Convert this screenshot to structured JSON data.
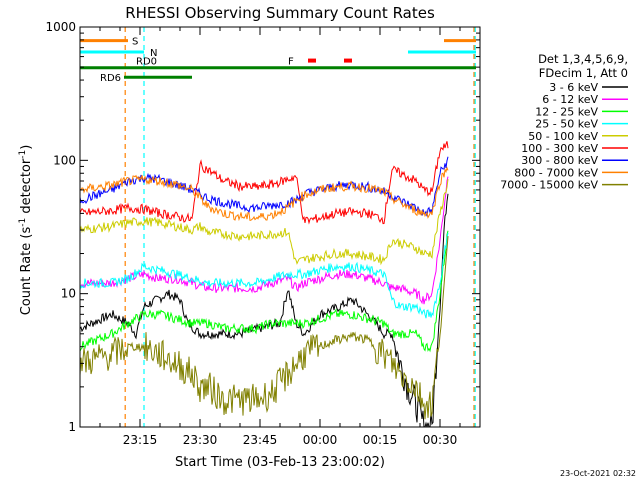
{
  "chart_data": {
    "type": "line",
    "title": "RHESSI Observing Summary Count Rates",
    "xlabel": "Start Time (03-Feb-13 23:00:02)",
    "ylabel_main": "Count Rate (s",
    "ylabel_sup": "-1",
    "ylabel_rest": " detector",
    "ylabel_sup2": "-1",
    "ylabel_end": ")",
    "x_unit": "minutes since 23:00:02",
    "xlim": [
      0,
      100
    ],
    "ylim": [
      1,
      1000
    ],
    "yscale": "log",
    "x_ticks": [
      {
        "t": 15,
        "label": "23:15"
      },
      {
        "t": 30,
        "label": "23:30"
      },
      {
        "t": 45,
        "label": "23:45"
      },
      {
        "t": 60,
        "label": "00:00"
      },
      {
        "t": 75,
        "label": "00:15"
      },
      {
        "t": 90,
        "label": "00:30"
      }
    ],
    "y_ticks": [
      {
        "v": 1,
        "label": "1"
      },
      {
        "v": 10,
        "label": "10"
      },
      {
        "v": 100,
        "label": "100"
      },
      {
        "v": 1000,
        "label": "1000"
      }
    ],
    "legend_header": [
      "Det 1,3,4,5,6,9,",
      "FDecim 1, Att 0"
    ],
    "series": [
      {
        "name": "3 - 6 keV",
        "color": "#000000",
        "points": [
          [
            0,
            5.5
          ],
          [
            8,
            7
          ],
          [
            12,
            6
          ],
          [
            14,
            5
          ],
          [
            16,
            8
          ],
          [
            22,
            10
          ],
          [
            25,
            9
          ],
          [
            27,
            6
          ],
          [
            30,
            5
          ],
          [
            35,
            5
          ],
          [
            40,
            5
          ],
          [
            45,
            5.5
          ],
          [
            50,
            6
          ],
          [
            52,
            11
          ],
          [
            54,
            6
          ],
          [
            56,
            5
          ],
          [
            60,
            7
          ],
          [
            65,
            8
          ],
          [
            68,
            9
          ],
          [
            70,
            8
          ],
          [
            74,
            6
          ],
          [
            76,
            5
          ],
          [
            78,
            5
          ],
          [
            80,
            3
          ],
          [
            82,
            2
          ],
          [
            84,
            1.5
          ],
          [
            86,
            1
          ],
          [
            88,
            1
          ],
          [
            89,
            3
          ],
          [
            90,
            8
          ],
          [
            91,
            30
          ],
          [
            92,
            60
          ]
        ]
      },
      {
        "name": "6 - 12 keV",
        "color": "#ff00ff",
        "points": [
          [
            0,
            12
          ],
          [
            8,
            12
          ],
          [
            12,
            13
          ],
          [
            16,
            14
          ],
          [
            20,
            13
          ],
          [
            24,
            13
          ],
          [
            28,
            12
          ],
          [
            32,
            11
          ],
          [
            36,
            11
          ],
          [
            40,
            11
          ],
          [
            44,
            11
          ],
          [
            48,
            12
          ],
          [
            52,
            13
          ],
          [
            54,
            11
          ],
          [
            56,
            12
          ],
          [
            60,
            13
          ],
          [
            64,
            14
          ],
          [
            68,
            14
          ],
          [
            72,
            13
          ],
          [
            76,
            12
          ],
          [
            78,
            11
          ],
          [
            80,
            11
          ],
          [
            84,
            10
          ],
          [
            86,
            9
          ],
          [
            88,
            10
          ],
          [
            90,
            25
          ],
          [
            92,
            80
          ]
        ]
      },
      {
        "name": "12 - 25 keV",
        "color": "#00ff00",
        "points": [
          [
            0,
            4
          ],
          [
            8,
            5
          ],
          [
            12,
            6
          ],
          [
            16,
            7
          ],
          [
            20,
            7
          ],
          [
            24,
            6.5
          ],
          [
            28,
            6
          ],
          [
            32,
            6
          ],
          [
            36,
            5.5
          ],
          [
            40,
            5.5
          ],
          [
            44,
            5.5
          ],
          [
            48,
            6
          ],
          [
            52,
            6
          ],
          [
            56,
            6
          ],
          [
            60,
            6.5
          ],
          [
            64,
            7
          ],
          [
            68,
            7
          ],
          [
            72,
            6.5
          ],
          [
            76,
            6
          ],
          [
            78,
            5
          ],
          [
            80,
            5
          ],
          [
            84,
            5
          ],
          [
            86,
            4
          ],
          [
            88,
            4
          ],
          [
            90,
            10
          ],
          [
            92,
            30
          ]
        ]
      },
      {
        "name": "25 - 50 keV",
        "color": "#00ffff",
        "points": [
          [
            0,
            12
          ],
          [
            8,
            12
          ],
          [
            12,
            13
          ],
          [
            16,
            16
          ],
          [
            20,
            15
          ],
          [
            24,
            14
          ],
          [
            28,
            13
          ],
          [
            32,
            12
          ],
          [
            36,
            12
          ],
          [
            40,
            12
          ],
          [
            44,
            12
          ],
          [
            48,
            13
          ],
          [
            52,
            14
          ],
          [
            56,
            14
          ],
          [
            60,
            15
          ],
          [
            64,
            16
          ],
          [
            68,
            16
          ],
          [
            72,
            15
          ],
          [
            76,
            14
          ],
          [
            78,
            9
          ],
          [
            80,
            8
          ],
          [
            84,
            8
          ],
          [
            86,
            7
          ],
          [
            88,
            7
          ],
          [
            90,
            12
          ],
          [
            92,
            30
          ]
        ]
      },
      {
        "name": "50 - 100 keV",
        "color": "#cccc00",
        "points": [
          [
            0,
            30
          ],
          [
            8,
            32
          ],
          [
            12,
            34
          ],
          [
            16,
            35
          ],
          [
            20,
            34
          ],
          [
            24,
            32
          ],
          [
            28,
            30
          ],
          [
            30,
            32
          ],
          [
            32,
            29
          ],
          [
            36,
            28
          ],
          [
            40,
            27
          ],
          [
            44,
            27
          ],
          [
            48,
            28
          ],
          [
            52,
            29
          ],
          [
            54,
            17
          ],
          [
            56,
            18
          ],
          [
            60,
            19
          ],
          [
            64,
            20
          ],
          [
            68,
            20
          ],
          [
            72,
            19
          ],
          [
            76,
            18
          ],
          [
            78,
            25
          ],
          [
            80,
            24
          ],
          [
            84,
            22
          ],
          [
            86,
            20
          ],
          [
            88,
            20
          ],
          [
            90,
            40
          ],
          [
            92,
            70
          ]
        ]
      },
      {
        "name": "100 - 300 keV",
        "color": "#ff0000",
        "points": [
          [
            0,
            40
          ],
          [
            8,
            42
          ],
          [
            12,
            44
          ],
          [
            16,
            43
          ],
          [
            20,
            40
          ],
          [
            24,
            38
          ],
          [
            28,
            36
          ],
          [
            30,
            92
          ],
          [
            32,
            85
          ],
          [
            36,
            70
          ],
          [
            40,
            64
          ],
          [
            44,
            63
          ],
          [
            48,
            66
          ],
          [
            52,
            72
          ],
          [
            54,
            76
          ],
          [
            56,
            35
          ],
          [
            60,
            37
          ],
          [
            64,
            40
          ],
          [
            68,
            41
          ],
          [
            72,
            40
          ],
          [
            76,
            36
          ],
          [
            78,
            85
          ],
          [
            80,
            80
          ],
          [
            84,
            70
          ],
          [
            86,
            60
          ],
          [
            88,
            58
          ],
          [
            90,
            120
          ],
          [
            92,
            130
          ]
        ]
      },
      {
        "name": "300 - 800 keV",
        "color": "#0000ff",
        "points": [
          [
            0,
            50
          ],
          [
            8,
            60
          ],
          [
            12,
            70
          ],
          [
            16,
            74
          ],
          [
            20,
            72
          ],
          [
            24,
            66
          ],
          [
            28,
            60
          ],
          [
            32,
            52
          ],
          [
            36,
            48
          ],
          [
            40,
            45
          ],
          [
            44,
            44
          ],
          [
            48,
            46
          ],
          [
            52,
            48
          ],
          [
            54,
            50
          ],
          [
            56,
            56
          ],
          [
            60,
            60
          ],
          [
            64,
            64
          ],
          [
            68,
            66
          ],
          [
            72,
            63
          ],
          [
            76,
            58
          ],
          [
            78,
            55
          ],
          [
            80,
            50
          ],
          [
            84,
            44
          ],
          [
            86,
            40
          ],
          [
            88,
            42
          ],
          [
            90,
            80
          ],
          [
            92,
            100
          ]
        ]
      },
      {
        "name": "800 - 7000 keV",
        "color": "#ff8000",
        "points": [
          [
            0,
            60
          ],
          [
            8,
            65
          ],
          [
            12,
            70
          ],
          [
            16,
            72
          ],
          [
            20,
            70
          ],
          [
            24,
            66
          ],
          [
            28,
            60
          ],
          [
            32,
            45
          ],
          [
            36,
            40
          ],
          [
            40,
            38
          ],
          [
            44,
            37
          ],
          [
            48,
            39
          ],
          [
            52,
            44
          ],
          [
            54,
            50
          ],
          [
            56,
            55
          ],
          [
            60,
            60
          ],
          [
            64,
            63
          ],
          [
            68,
            64
          ],
          [
            72,
            62
          ],
          [
            76,
            58
          ],
          [
            78,
            52
          ],
          [
            80,
            48
          ],
          [
            84,
            42
          ],
          [
            86,
            40
          ],
          [
            88,
            40
          ],
          [
            90,
            70
          ],
          [
            92,
            90
          ]
        ]
      },
      {
        "name": "7000 - 15000 keV",
        "color": "#808000",
        "points": [
          [
            0,
            3
          ],
          [
            8,
            3.5
          ],
          [
            12,
            4
          ],
          [
            16,
            4
          ],
          [
            20,
            3.5
          ],
          [
            24,
            3
          ],
          [
            28,
            2.5
          ],
          [
            30,
            2
          ],
          [
            32,
            2
          ],
          [
            36,
            1.6
          ],
          [
            40,
            1.6
          ],
          [
            44,
            1.6
          ],
          [
            48,
            1.8
          ],
          [
            52,
            2.5
          ],
          [
            54,
            3
          ],
          [
            56,
            3.5
          ],
          [
            60,
            4
          ],
          [
            64,
            4.5
          ],
          [
            68,
            4.8
          ],
          [
            72,
            4.5
          ],
          [
            76,
            3.5
          ],
          [
            78,
            3
          ],
          [
            80,
            2.5
          ],
          [
            84,
            2
          ],
          [
            86,
            1.5
          ],
          [
            88,
            1.5
          ],
          [
            90,
            5
          ],
          [
            92,
            25
          ]
        ]
      }
    ],
    "state_bars": [
      {
        "label": "S",
        "color": "#ff8000",
        "y": 790,
        "segments": [
          [
            0,
            12
          ],
          [
            91,
            99
          ]
        ]
      },
      {
        "label": "N",
        "color": "#00ffff",
        "y": 650,
        "segments": [
          [
            0,
            16
          ],
          [
            82,
            99
          ]
        ]
      },
      {
        "label": "RD0",
        "color": "#008000",
        "y": 495,
        "segments": [
          [
            0,
            30
          ],
          [
            30,
            55
          ],
          [
            55,
            80
          ],
          [
            80,
            99
          ]
        ]
      },
      {
        "label": "RD6",
        "color": "#008000",
        "y": 420,
        "segments": [
          [
            11,
            28
          ]
        ]
      },
      {
        "label": "F",
        "color": "#ff0000",
        "y": 560,
        "segments": [
          [
            57,
            59
          ],
          [
            66,
            68
          ]
        ]
      }
    ],
    "vlines": [
      {
        "t": 11.3,
        "color": "#ff8000"
      },
      {
        "t": 16,
        "color": "#00ffff"
      },
      {
        "t": 98.5,
        "color": "#ff8000"
      },
      {
        "t": 98.8,
        "color": "#00ffff"
      }
    ],
    "footer": "23-Oct-2021 02:32"
  }
}
